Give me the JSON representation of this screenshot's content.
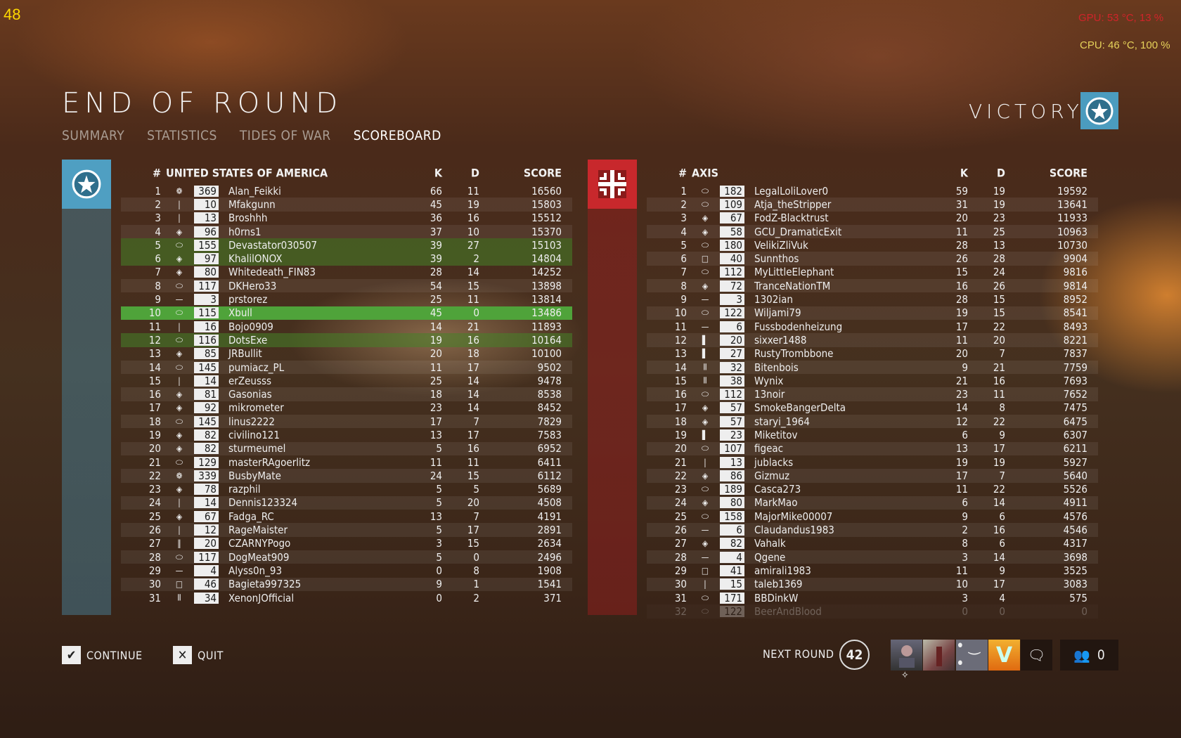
{
  "overlay": {
    "fps": "48",
    "gpu": "GPU: 53 °C, 13 %",
    "cpu": "CPU: 46 °C, 100 %"
  },
  "header": {
    "title": "END OF ROUND",
    "tabs": [
      "SUMMARY",
      "STATISTICS",
      "TIDES OF WAR",
      "SCOREBOARD"
    ],
    "active_tab": "SCOREBOARD",
    "result": "VICTORY"
  },
  "colors": {
    "usa": "#4f9fc2",
    "axis": "#c8282c",
    "highlight_squad": "#46822a",
    "highlight_self": "#4fa33a"
  },
  "left": {
    "hash": "#",
    "team": "UNITED STATES OF AMERICA",
    "k": "K",
    "d": "D",
    "score": "SCORE",
    "rows": [
      [
        1,
        "emblem",
        369,
        "Alan_Feikki",
        66,
        11,
        16560,
        ""
      ],
      [
        2,
        "bar",
        10,
        "Mfakgunn",
        45,
        19,
        15803,
        ""
      ],
      [
        3,
        "bar",
        13,
        "Broshhh",
        36,
        16,
        15512,
        ""
      ],
      [
        4,
        "diamond",
        96,
        "h0rns1",
        37,
        10,
        15370,
        ""
      ],
      [
        5,
        "ellipse",
        155,
        "Devastator030507",
        39,
        27,
        15103,
        "squad"
      ],
      [
        6,
        "diamond",
        97,
        "KhalilONOX",
        39,
        2,
        14804,
        "squad"
      ],
      [
        7,
        "diamond",
        80,
        "Whitedeath_FIN83",
        28,
        14,
        14252,
        ""
      ],
      [
        8,
        "ellipse",
        117,
        "DKHero33",
        54,
        15,
        13898,
        ""
      ],
      [
        9,
        "dash",
        3,
        "prstorez",
        25,
        11,
        13814,
        ""
      ],
      [
        10,
        "ellipse",
        115,
        "Xbull",
        45,
        0,
        13486,
        "self"
      ],
      [
        11,
        "bar",
        16,
        "Bojo0909",
        14,
        21,
        11893,
        ""
      ],
      [
        12,
        "ellipse",
        116,
        "DotsExe",
        19,
        16,
        10164,
        "squad"
      ],
      [
        13,
        "diamond",
        85,
        "JRBullit",
        20,
        18,
        10100,
        ""
      ],
      [
        14,
        "ellipse",
        145,
        "pumiacz_PL",
        11,
        17,
        9502,
        ""
      ],
      [
        15,
        "bar",
        14,
        "erZeusss",
        25,
        14,
        9478,
        ""
      ],
      [
        16,
        "diamond",
        81,
        "Gasonias",
        18,
        14,
        8538,
        ""
      ],
      [
        17,
        "diamond",
        92,
        "mikrometer",
        23,
        14,
        8452,
        ""
      ],
      [
        18,
        "ellipse",
        145,
        "linus2222",
        17,
        7,
        7829,
        ""
      ],
      [
        19,
        "diamond",
        82,
        "civilino121",
        13,
        17,
        7583,
        ""
      ],
      [
        20,
        "diamond",
        82,
        "sturmeumel",
        5,
        16,
        6952,
        ""
      ],
      [
        21,
        "ellipse",
        129,
        "masterRAgoerlitz",
        11,
        11,
        6411,
        ""
      ],
      [
        22,
        "emblem",
        339,
        "BusbyMate",
        24,
        15,
        6112,
        ""
      ],
      [
        23,
        "diamond",
        78,
        "razphil",
        5,
        5,
        5689,
        ""
      ],
      [
        24,
        "bar",
        14,
        "Dennis123324",
        5,
        20,
        4508,
        ""
      ],
      [
        25,
        "diamond",
        67,
        "Fadga_RC",
        13,
        7,
        4191,
        ""
      ],
      [
        26,
        "bar",
        12,
        "RageMaister",
        5,
        17,
        2891,
        ""
      ],
      [
        27,
        "double-bar",
        20,
        "CZARNYPogo",
        3,
        15,
        2634,
        ""
      ],
      [
        28,
        "ellipse",
        117,
        "DogMeat909",
        5,
        0,
        2496,
        ""
      ],
      [
        29,
        "dash",
        4,
        "Alyss0n_93",
        0,
        8,
        1908,
        ""
      ],
      [
        30,
        "square",
        46,
        "Bagieta997325",
        9,
        1,
        1541,
        ""
      ],
      [
        31,
        "triple-bar",
        34,
        "XenonJOfficial",
        0,
        2,
        371,
        ""
      ]
    ]
  },
  "right": {
    "hash": "#",
    "team": "AXIS",
    "k": "K",
    "d": "D",
    "score": "SCORE",
    "rows": [
      [
        1,
        "ellipse",
        182,
        "LegalLoliLover0",
        59,
        19,
        19592,
        ""
      ],
      [
        2,
        "ellipse",
        109,
        "Atja_theStripper",
        31,
        19,
        13641,
        ""
      ],
      [
        3,
        "diamond",
        67,
        "FodZ-Blacktrust",
        20,
        23,
        11933,
        ""
      ],
      [
        4,
        "diamond",
        58,
        "GCU_DramaticExit",
        11,
        25,
        10963,
        ""
      ],
      [
        5,
        "ellipse",
        180,
        "VelikiZliVuk",
        28,
        13,
        10730,
        ""
      ],
      [
        6,
        "square",
        40,
        "Sunnthos",
        26,
        28,
        9904,
        ""
      ],
      [
        7,
        "ellipse",
        112,
        "MyLittleElephant",
        15,
        24,
        9816,
        ""
      ],
      [
        8,
        "diamond",
        72,
        "TranceNationTM",
        16,
        26,
        9814,
        ""
      ],
      [
        9,
        "dash",
        3,
        "1302ian",
        28,
        15,
        8952,
        ""
      ],
      [
        10,
        "ellipse",
        122,
        "Wiljami79",
        19,
        15,
        8541,
        ""
      ],
      [
        11,
        "dash",
        6,
        "Fussbodenheizung",
        17,
        22,
        8493,
        ""
      ],
      [
        12,
        "thick-bar",
        20,
        "sixxer1488",
        11,
        20,
        8221,
        ""
      ],
      [
        13,
        "thick-bar",
        27,
        "RustyTrombbone",
        20,
        7,
        7837,
        ""
      ],
      [
        14,
        "triple-bar",
        32,
        "Bitenbois",
        9,
        21,
        7759,
        ""
      ],
      [
        15,
        "triple-bar",
        38,
        "Wynix",
        21,
        16,
        7693,
        ""
      ],
      [
        16,
        "ellipse",
        112,
        "13noir",
        23,
        11,
        7652,
        ""
      ],
      [
        17,
        "diamond",
        57,
        "SmokeBangerDelta",
        14,
        8,
        7475,
        ""
      ],
      [
        18,
        "diamond",
        57,
        "staryi_1964",
        12,
        22,
        6475,
        ""
      ],
      [
        19,
        "thick-bar",
        23,
        "Miketitov",
        6,
        9,
        6307,
        ""
      ],
      [
        20,
        "ellipse",
        107,
        "figeac",
        13,
        17,
        6211,
        ""
      ],
      [
        21,
        "bar",
        13,
        "jublacks",
        19,
        19,
        5927,
        ""
      ],
      [
        22,
        "diamond",
        86,
        "Gizmuz",
        17,
        7,
        5640,
        ""
      ],
      [
        23,
        "ellipse",
        189,
        "Casca273",
        11,
        22,
        5526,
        ""
      ],
      [
        24,
        "diamond",
        80,
        "MarkMao",
        6,
        14,
        4911,
        ""
      ],
      [
        25,
        "ellipse",
        158,
        "MajorMike00007",
        9,
        6,
        4576,
        ""
      ],
      [
        26,
        "dash",
        6,
        "Claudandus1983",
        2,
        16,
        4546,
        ""
      ],
      [
        27,
        "diamond",
        82,
        "Vahalk",
        8,
        6,
        4317,
        ""
      ],
      [
        28,
        "dash",
        4,
        "Qgene",
        3,
        14,
        3698,
        ""
      ],
      [
        29,
        "square",
        41,
        "amirali1983",
        11,
        9,
        3525,
        ""
      ],
      [
        30,
        "bar",
        15,
        "taleb1369",
        10,
        17,
        3083,
        ""
      ],
      [
        31,
        "ellipse",
        171,
        "BBDinkW",
        3,
        4,
        575,
        ""
      ],
      [
        32,
        "ellipse",
        122,
        "BeerAndBlood",
        0,
        0,
        0,
        "partial"
      ]
    ]
  },
  "footer": {
    "continue": "CONTINUE",
    "quit": "QUIT",
    "next_round": "NEXT ROUND",
    "countdown": "42",
    "friends_count": "0"
  }
}
